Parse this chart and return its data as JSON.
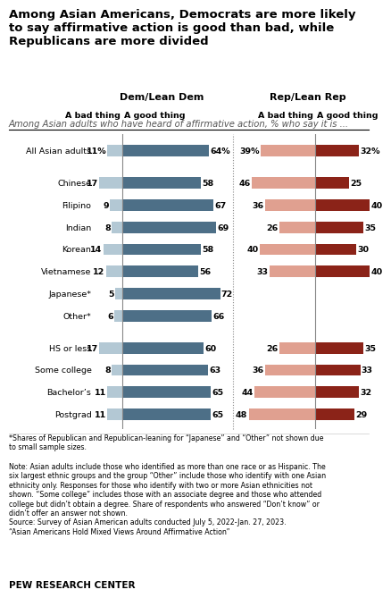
{
  "title": "Among Asian Americans, Democrats are more likely\nto say affirmative action is good than bad, while\nRepublicans are more divided",
  "subtitle": "Among Asian adults who have heard of affirmative action, % who say it is ...",
  "categories": [
    "All Asian adults",
    "Chinese",
    "Filipino",
    "Indian",
    "Korean",
    "Vietnamese",
    "Japanese*",
    "Other*",
    "HS or less",
    "Some college",
    "Bachelor’s",
    "Postgrad"
  ],
  "dem_bad": [
    11,
    17,
    9,
    8,
    14,
    12,
    5,
    6,
    17,
    8,
    11,
    11
  ],
  "dem_good": [
    64,
    58,
    67,
    69,
    58,
    56,
    72,
    66,
    60,
    63,
    65,
    65
  ],
  "rep_bad": [
    39,
    46,
    36,
    26,
    40,
    33,
    0,
    0,
    26,
    36,
    44,
    48
  ],
  "rep_good": [
    32,
    25,
    40,
    35,
    30,
    40,
    0,
    0,
    35,
    33,
    32,
    29
  ],
  "dem_bad_color": "#b3c8d4",
  "dem_good_color": "#4d6f87",
  "rep_bad_color": "#e0a090",
  "rep_good_color": "#8b2318",
  "footnote_star": "*Shares of Republican and Republican-leaning for “Japanese” and “Other” not shown due\nto small sample sizes.",
  "footnote_note": "Note: Asian adults include those who identified as more than one race or as Hispanic. The\nsix largest ethnic groups and the group “Other” include those who identify with one Asian\nethnicity only. Responses for those who identify with two or more Asian ethnicities not\nshown. “Some college” includes those with an associate degree and those who attended\ncollege but didn’t obtain a degree. Share of respondents who answered “Don’t know” or\ndidn’t offer an answer not shown.\nSource: Survey of Asian American adults conducted July 5, 2022-Jan. 27, 2023.\n“Asian Americans Hold Mixed Views Around Affirmative Action”",
  "logo": "PEW RESEARCH CENTER",
  "col_header_dem": "Dem/Lean Dem",
  "col_header_rep": "Rep/Lean Rep",
  "col_sub_bad": "A bad thing",
  "col_sub_good": "A good thing"
}
